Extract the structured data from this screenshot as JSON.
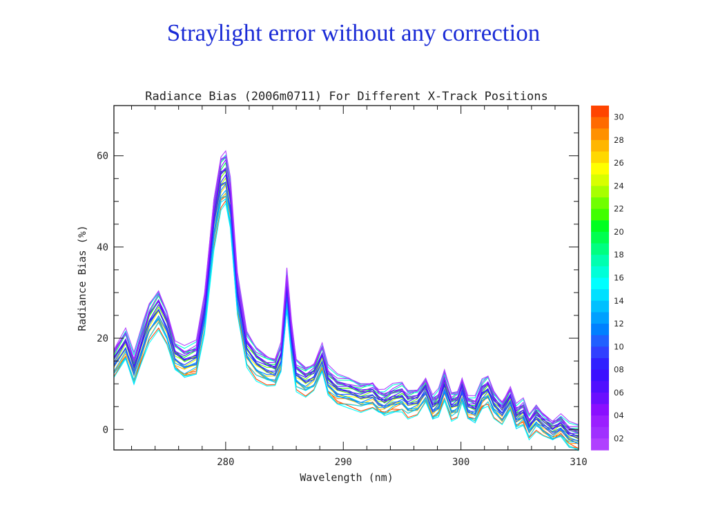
{
  "slide_title": "Straylight error without any correction",
  "chart_data": {
    "type": "line",
    "title": "Radiance Bias (2006m0711) For Different X-Track Positions",
    "xlabel": "Wavelength (nm)",
    "ylabel": "Radiance Bias (%)",
    "xlim": [
      270.5,
      310
    ],
    "ylim": [
      -4.5,
      71
    ],
    "xticks": [
      280,
      290,
      300,
      310
    ],
    "yticks": [
      0,
      20,
      40,
      60
    ],
    "xtick_labels": [
      "280",
      "290",
      "300",
      "310"
    ],
    "ytick_labels": [
      "0",
      "20",
      "40",
      "60"
    ],
    "grid": false,
    "legend": {
      "type": "colorbar",
      "placement": "right",
      "labels": [
        "30",
        "28",
        "26",
        "24",
        "22",
        "20",
        "18",
        "16",
        "14",
        "12",
        "10",
        "08",
        "06",
        "04",
        "02"
      ],
      "colors": [
        "#ff4400",
        "#ff6a00",
        "#ff9000",
        "#ffb600",
        "#ffd800",
        "#ffff00",
        "#d8ff00",
        "#a8ff00",
        "#70ff00",
        "#40ff00",
        "#00ff20",
        "#00ff50",
        "#00ff80",
        "#00ffb0",
        "#00ffd8",
        "#00ffff",
        "#00e0ff",
        "#00c0ff",
        "#00a0ff",
        "#0080ff",
        "#2060ff",
        "#3040ff",
        "#3020ff",
        "#3c10ff",
        "#5010ff",
        "#6a10ff",
        "#8a10ff",
        "#9a20ff",
        "#a030ff",
        "#b040ff"
      ]
    },
    "base_profile": {
      "x": [
        270.5,
        271.5,
        272.2,
        273.0,
        273.5,
        274.3,
        275.0,
        275.7,
        276.5,
        277.5,
        278.2,
        279.0,
        279.6,
        280.0,
        280.4,
        281.0,
        281.8,
        282.6,
        283.5,
        284.2,
        284.7,
        285.2,
        285.6,
        286.0,
        286.8,
        287.5,
        288.2,
        288.7,
        289.5,
        290.5,
        291.5,
        292.5,
        293.0,
        293.5,
        294.2,
        295.0,
        295.5,
        296.3,
        297.0,
        297.6,
        298.1,
        298.6,
        299.2,
        299.7,
        300.1,
        300.6,
        301.2,
        301.8,
        302.3,
        302.8,
        303.5,
        304.2,
        304.7,
        305.3,
        305.8,
        306.4,
        307.0,
        307.8,
        308.5,
        309.2,
        310.0
      ],
      "y": [
        15,
        19,
        13.5,
        20,
        24,
        27,
        23,
        16.5,
        15,
        16,
        26,
        46,
        55,
        56,
        50,
        30,
        18,
        15,
        13.5,
        13,
        16,
        31,
        20,
        12.5,
        11,
        12,
        16,
        11,
        9,
        8.5,
        7.5,
        8,
        6.5,
        6,
        7,
        7.5,
        6,
        6.5,
        9,
        5,
        6,
        10,
        5.5,
        6,
        9,
        5,
        4.5,
        8,
        9,
        6,
        4,
        7,
        3,
        4,
        1,
        3,
        1.5,
        0,
        1,
        -1,
        -1.5
      ]
    },
    "series_offsets": [
      -4,
      -3.5,
      -3,
      -2.5,
      -2,
      -1.5,
      -1,
      -0.5,
      0,
      0.5,
      1,
      1.5,
      2,
      2.5,
      3,
      -4.5,
      -3.8,
      -2.8,
      -2.2,
      -1.8,
      -1.2,
      -0.8,
      -0.2,
      0.3,
      0.8,
      1.2,
      1.8,
      2.2,
      2.8,
      3.5
    ],
    "peak_values": {
      "280nm": 56,
      "285.2nm": 31,
      "275nm": 27
    }
  }
}
